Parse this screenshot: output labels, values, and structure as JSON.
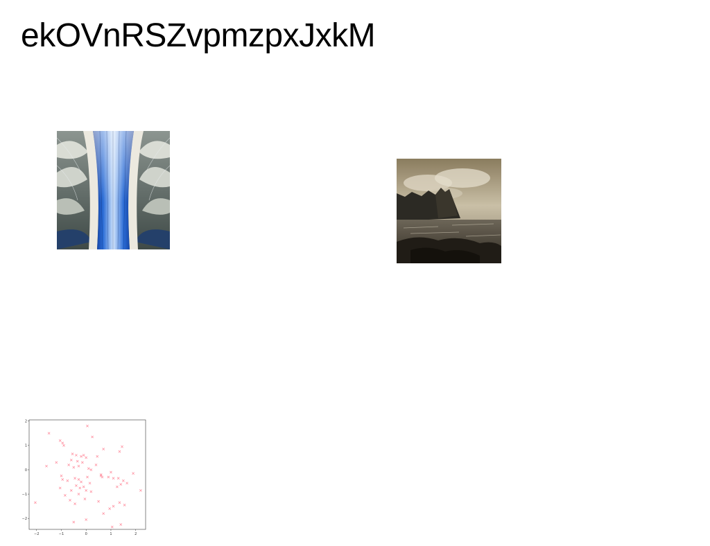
{
  "title": "ekOVnRSZvpmzpxJxkM",
  "images": {
    "architecture": {
      "icon": "architecture-photo"
    },
    "coast": {
      "icon": "coastal-landscape-photo"
    }
  },
  "chart_data": {
    "type": "scatter",
    "title": "",
    "xlabel": "",
    "ylabel": "",
    "xlim": [
      -2.3,
      2.4
    ],
    "ylim": [
      -2.45,
      2.05
    ],
    "xticks": [
      -2,
      -1,
      0,
      1,
      2
    ],
    "yticks": [
      2,
      1,
      0,
      -1,
      -2
    ],
    "xtick_labels": [
      "−2",
      "−1",
      "0",
      "1",
      "2"
    ],
    "ytick_labels": [
      "2",
      "1",
      "0",
      "−1",
      "−2"
    ],
    "grid": false,
    "marker": "x",
    "color": "#ff8899",
    "series": [
      {
        "x": [
          0.05,
          0.25,
          -1.5,
          -1.05,
          -0.95,
          -0.9,
          -0.55,
          -0.4,
          -0.2,
          -0.1,
          0.0,
          0.45,
          0.7,
          1.45,
          1.35,
          -0.6,
          -0.35,
          -0.15,
          -1.6,
          -1.2,
          -0.7,
          -0.5,
          -0.3,
          0.1,
          0.2,
          0.4,
          0.6,
          0.65,
          1.0,
          1.1,
          1.3,
          1.5,
          1.9,
          -1.0,
          -0.95,
          -0.75,
          -0.45,
          -0.3,
          -0.2,
          0.05,
          0.15,
          0.6,
          0.9,
          1.25,
          1.65,
          -1.05,
          -0.6,
          -0.4,
          -0.25,
          -0.1,
          0.0,
          0.2,
          1.4,
          2.2,
          -2.05,
          -0.85,
          -0.65,
          -0.45,
          -0.3,
          -0.05,
          0.5,
          0.95,
          1.1,
          1.55,
          1.35,
          0.7,
          -0.5,
          0.0,
          1.05,
          1.4
        ],
        "y": [
          1.8,
          1.35,
          1.5,
          1.2,
          1.1,
          1.0,
          0.65,
          0.6,
          0.55,
          0.6,
          0.5,
          0.55,
          0.85,
          0.95,
          0.75,
          0.4,
          0.35,
          0.3,
          0.15,
          0.3,
          0.2,
          0.1,
          0.15,
          0.05,
          0.0,
          0.2,
          -0.2,
          -0.3,
          -0.1,
          -0.35,
          -0.35,
          -0.45,
          -0.15,
          -0.25,
          -0.4,
          -0.45,
          -0.35,
          -0.4,
          -0.5,
          -0.3,
          -0.55,
          -0.25,
          -0.3,
          -0.7,
          -0.55,
          -0.75,
          -0.85,
          -0.65,
          -0.75,
          -0.7,
          -0.85,
          -0.9,
          -0.6,
          -0.85,
          -1.35,
          -1.05,
          -1.25,
          -1.4,
          -1.0,
          -1.2,
          -1.3,
          -1.6,
          -1.5,
          -1.45,
          -1.35,
          -1.8,
          -2.15,
          -2.05,
          -2.35,
          -2.25
        ]
      }
    ]
  }
}
